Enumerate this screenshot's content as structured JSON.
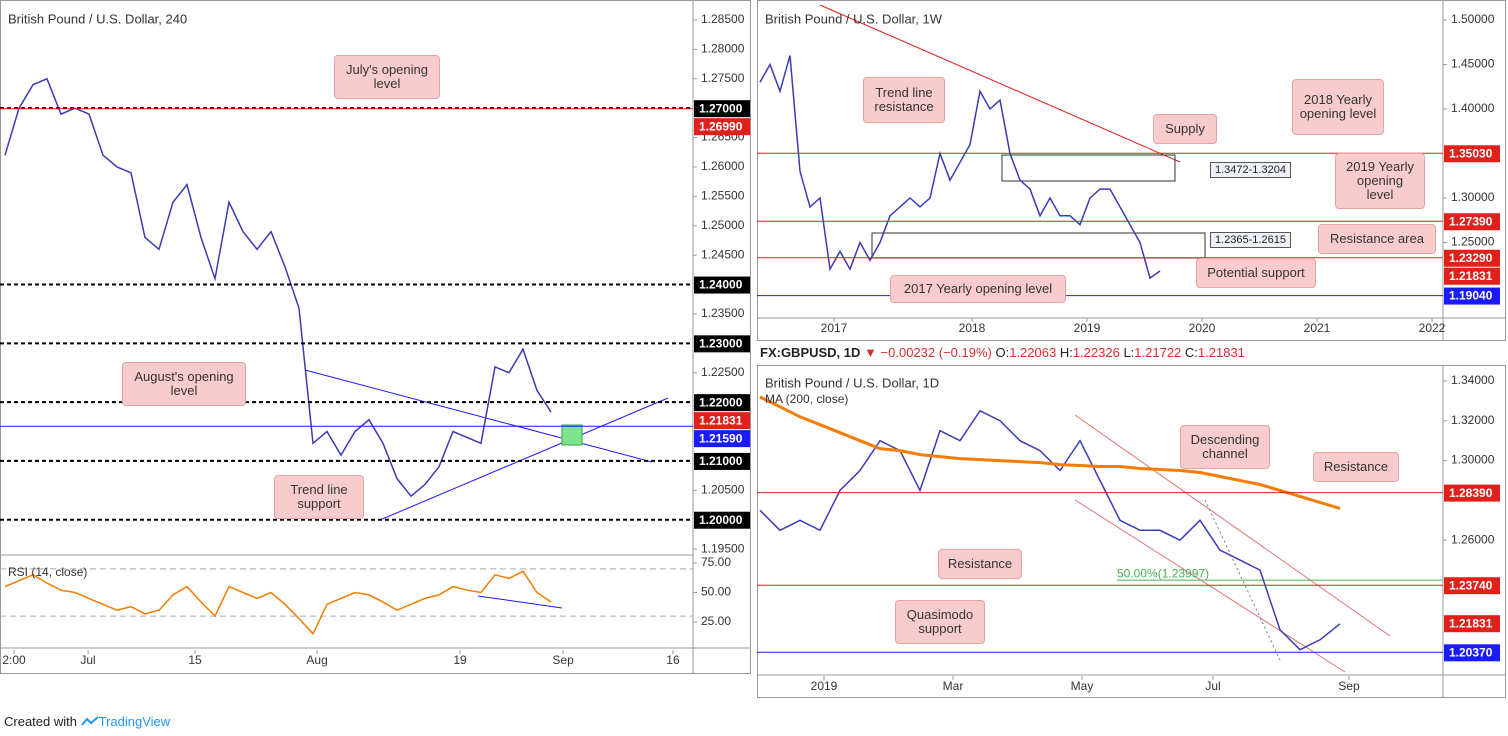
{
  "chart_data": [
    {
      "type": "line",
      "title": "British Pound / U.S. Dollar, 240",
      "ylim": [
        1.194,
        1.2884
      ],
      "xlim": [
        -0.36,
        49.14
      ],
      "yticks": [
        {
          "value": 1.285,
          "label": "1.28500"
        },
        {
          "value": 1.28,
          "label": "1.28000"
        },
        {
          "value": 1.275,
          "label": "1.27500"
        },
        {
          "value": 1.265,
          "label": "1.26500"
        },
        {
          "value": 1.26,
          "label": "1.26000"
        },
        {
          "value": 1.255,
          "label": "1.25500"
        },
        {
          "value": 1.25,
          "label": "1.25000"
        },
        {
          "value": 1.245,
          "label": "1.24500"
        },
        {
          "value": 1.235,
          "label": "1.23500"
        },
        {
          "value": 1.225,
          "label": "1.22500"
        },
        {
          "value": 1.205,
          "label": "1.20500"
        },
        {
          "value": 1.195,
          "label": "1.19500"
        }
      ],
      "series": [
        {
          "color": "#3b3bb3",
          "values": [
            1.262,
            1.27,
            1.274,
            1.275,
            1.269,
            1.27,
            1.269,
            1.262,
            1.26,
            1.259,
            1.248,
            1.246,
            1.254,
            1.257,
            1.248,
            1.241,
            1.254,
            1.249,
            1.246,
            1.249,
            1.243,
            1.236,
            1.213,
            1.215,
            1.211,
            1.215,
            1.217,
            1.213,
            1.207,
            1.204,
            1.206,
            1.209,
            1.215,
            1.214,
            1.213,
            1.226,
            1.225,
            1.229,
            1.222,
            1.2183
          ]
        }
      ],
      "levels": [
        {
          "value": 1.27,
          "label": "1.27000",
          "color": "#000000",
          "line": "dashed"
        },
        {
          "value": 1.2699,
          "label": "1.26990",
          "color": "#e0201b",
          "line": "solid"
        },
        {
          "value": 1.24,
          "label": "1.24000",
          "color": "#000000",
          "line": "dashed"
        },
        {
          "value": 1.23,
          "label": "1.23000",
          "color": "#000000",
          "line": "dashed"
        },
        {
          "value": 1.22,
          "label": "1.22000",
          "color": "#000000",
          "line": "dashed"
        },
        {
          "value": 1.21831,
          "label": "1.21831",
          "color": "#e0201b",
          "line": "none"
        },
        {
          "value": 1.2159,
          "label": "1.21590",
          "color": "#1a1aff",
          "line": "solid"
        },
        {
          "value": 1.21,
          "label": "1.21000",
          "color": "#000000",
          "line": "dashed"
        },
        {
          "value": 1.2,
          "label": "1.20000",
          "color": "#000000",
          "line": "dashed"
        }
      ],
      "annotations": [
        "July's opening level",
        "August's opening level",
        "Trend line support"
      ]
    },
    {
      "type": "line",
      "title": "RSI (14, close)",
      "ylim": [
        3,
        81.8
      ],
      "xlim": [
        -0.36,
        49.14
      ],
      "yticks": [
        {
          "value": 75,
          "label": "75.00"
        },
        {
          "value": 50,
          "label": "50.00"
        },
        {
          "value": 25,
          "label": "25.00"
        }
      ],
      "bands": [
        70,
        30
      ],
      "xticks": [
        {
          "value": 0.64,
          "label": "2:00"
        },
        {
          "value": 5.93,
          "label": "Jul"
        },
        {
          "value": 13.57,
          "label": "15"
        },
        {
          "value": 22.29,
          "label": "Aug"
        },
        {
          "value": 32.5,
          "label": "19"
        },
        {
          "value": 39.86,
          "label": "Sep"
        },
        {
          "value": 47.71,
          "label": "16"
        }
      ],
      "series": [
        {
          "color": "#f57c00",
          "values": [
            55,
            60,
            65,
            58,
            52,
            50,
            45,
            40,
            35,
            38,
            32,
            35,
            48,
            55,
            42,
            30,
            55,
            50,
            45,
            50,
            40,
            28,
            15,
            40,
            45,
            50,
            48,
            42,
            35,
            40,
            45,
            48,
            55,
            52,
            50,
            65,
            62,
            68,
            50,
            42
          ]
        }
      ]
    },
    {
      "type": "line",
      "title": "British Pound / U.S. Dollar, 1W",
      "ylim": [
        1.1652,
        1.5225
      ],
      "xlim": [
        -0.3,
        68.3
      ],
      "yticks": [
        {
          "value": 1.5,
          "label": "1.50000"
        },
        {
          "value": 1.45,
          "label": "1.45000"
        },
        {
          "value": 1.4,
          "label": "1.40000"
        },
        {
          "value": 1.3,
          "label": "1.30000"
        },
        {
          "value": 1.25,
          "label": "1.25000"
        }
      ],
      "xticks": [
        {
          "value": 7.4,
          "label": "2017"
        },
        {
          "value": 21.2,
          "label": "2018"
        },
        {
          "value": 32.7,
          "label": "2019"
        },
        {
          "value": 44.2,
          "label": "2020"
        },
        {
          "value": 55.7,
          "label": "2021"
        },
        {
          "value": 67.2,
          "label": "2022"
        }
      ],
      "series": [
        {
          "color": "#3b3bb3",
          "values": [
            1.43,
            1.45,
            1.42,
            1.46,
            1.33,
            1.29,
            1.3,
            1.22,
            1.24,
            1.22,
            1.25,
            1.23,
            1.25,
            1.28,
            1.29,
            1.3,
            1.29,
            1.3,
            1.35,
            1.32,
            1.34,
            1.36,
            1.42,
            1.4,
            1.41,
            1.35,
            1.32,
            1.31,
            1.28,
            1.3,
            1.28,
            1.28,
            1.27,
            1.3,
            1.31,
            1.31,
            1.29,
            1.27,
            1.25,
            1.21,
            1.218
          ]
        }
      ],
      "levels": [
        {
          "value": 1.3503,
          "label": "1.35030",
          "color": "#e0201b",
          "line": "solid"
        },
        {
          "value": 1.2739,
          "label": "1.27390",
          "color": "#e0201b",
          "line": "solid"
        },
        {
          "value": 1.2329,
          "label": "1.23290",
          "color": "#e0201b",
          "line": "solid"
        },
        {
          "value": 1.21831,
          "label": "1.21831",
          "color": "#e0201b",
          "line": "none"
        },
        {
          "value": 1.1904,
          "label": "1.19040",
          "color": "#1a1aff",
          "line": "solid"
        }
      ],
      "annotations": [
        "Trend line resistance",
        "Supply",
        "2018 Yearly opening level",
        "2019 Yearly opening level",
        "Resistance area",
        "Potential support",
        "2017 Yearly opening level"
      ],
      "ranges": [
        "1.3472-1.3204",
        "1.2365-1.2615"
      ]
    },
    {
      "type": "line",
      "title": "British Pound / U.S. Dollar, 1D",
      "ylim": [
        1.1923,
        1.348
      ],
      "xlim": [
        -0.15,
        34.15
      ],
      "yticks": [
        {
          "value": 1.34,
          "label": "1.34000"
        },
        {
          "value": 1.32,
          "label": "1.32000"
        },
        {
          "value": 1.3,
          "label": "1.30000"
        },
        {
          "value": 1.26,
          "label": "1.26000"
        }
      ],
      "xticks": [
        {
          "value": 3.2,
          "label": "2019"
        },
        {
          "value": 9.65,
          "label": "Mar"
        },
        {
          "value": 16.1,
          "label": "May"
        },
        {
          "value": 22.65,
          "label": "Jul"
        },
        {
          "value": 29.45,
          "label": "Sep"
        }
      ],
      "series": [
        {
          "color": "#3b3bb3",
          "values": [
            1.275,
            1.265,
            1.27,
            1.265,
            1.285,
            1.295,
            1.31,
            1.305,
            1.285,
            1.315,
            1.31,
            1.325,
            1.32,
            1.31,
            1.305,
            1.295,
            1.31,
            1.29,
            1.27,
            1.265,
            1.265,
            1.26,
            1.27,
            1.255,
            1.25,
            1.245,
            1.215,
            1.205,
            1.21,
            1.218
          ]
        },
        {
          "name": "MA (200, close)",
          "color": "#f57c00",
          "values": [
            1.332,
            1.327,
            1.322,
            1.318,
            1.314,
            1.31,
            1.306,
            1.305,
            1.303,
            1.302,
            1.301,
            1.3005,
            1.3,
            1.2995,
            1.299,
            1.298,
            1.2975,
            1.297,
            1.297,
            1.296,
            1.2955,
            1.295,
            1.294,
            1.292,
            1.29,
            1.288,
            1.285,
            1.282,
            1.279,
            1.276
          ]
        }
      ],
      "levels": [
        {
          "value": 1.2839,
          "label": "1.28390",
          "color": "#e0201b",
          "line": "solid"
        },
        {
          "value": 1.2374,
          "label": "1.23740",
          "color": "#e0201b",
          "line": "solid"
        },
        {
          "value": 1.21831,
          "label": "1.21831",
          "color": "#e0201b",
          "line": "none"
        },
        {
          "value": 1.2037,
          "label": "1.20370",
          "color": "#1a1aff",
          "line": "solid"
        }
      ],
      "fib": {
        "value": 1.23997,
        "label": "50.00%(1.23997)",
        "color": "#4caf50"
      },
      "annotations": [
        "Descending channel",
        "Resistance",
        "Resistance",
        "Quasimodo support"
      ]
    }
  ],
  "header": {
    "symbol": "FX:GBPUSD, 1D",
    "arrow": "▼",
    "change": "−0.00232 (−0.19%)",
    "o_label": "O:",
    "open": "1.22063",
    "h_label": "H:",
    "high": "1.22326",
    "l_label": "L:",
    "low": "1.21722",
    "c_label": "C:",
    "close": "1.21831"
  },
  "footer": {
    "created": "Created with",
    "brand": "TradingView"
  }
}
